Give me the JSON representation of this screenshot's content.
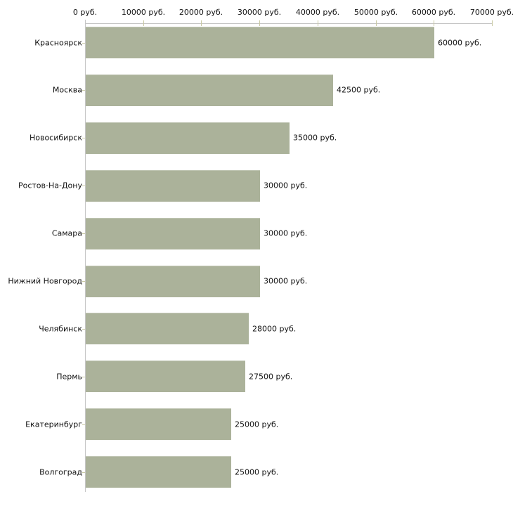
{
  "chart_data": {
    "type": "bar",
    "orientation": "horizontal",
    "title": "",
    "categories": [
      "Красноярск",
      "Москва",
      "Новосибирск",
      "Ростов-На-Дону",
      "Самара",
      "Нижний Новгород",
      "Челябинск",
      "Пермь",
      "Екатеринбург",
      "Волгоград"
    ],
    "values": [
      60000,
      42500,
      35000,
      30000,
      30000,
      30000,
      28000,
      27500,
      25000,
      25000
    ],
    "value_labels": [
      "60000 руб.",
      "42500 руб.",
      "35000 руб.",
      "30000 руб.",
      "30000 руб.",
      "30000 руб.",
      "28000 руб.",
      "27500 руб.",
      "25000 руб.",
      "25000 руб."
    ],
    "x_ticks": [
      0,
      10000,
      20000,
      30000,
      40000,
      50000,
      60000,
      70000
    ],
    "x_tick_labels": [
      "0 руб.",
      "10000 руб.",
      "20000 руб.",
      "30000 руб.",
      "40000 руб.",
      "50000 руб.",
      "60000 руб.",
      "70000 руб."
    ],
    "xlim": [
      0,
      70000
    ],
    "xlabel": "",
    "ylabel": "",
    "grid": false,
    "legend_position": "none",
    "bar_color": "#abb29a",
    "axis_color": "#c6c6c6",
    "tick_color": "#c9c9a3",
    "text_color": "#111111"
  }
}
